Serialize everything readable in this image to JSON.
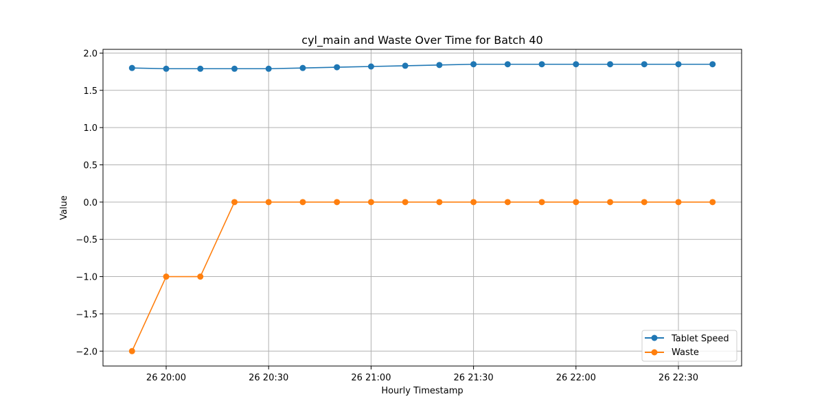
{
  "chart_data": {
    "type": "line",
    "title": "cyl_main and Waste Over Time for Batch 40",
    "xlabel": "Hourly Timestamp",
    "ylabel": "Value",
    "x": [
      "19:50",
      "20:00",
      "20:10",
      "20:20",
      "20:30",
      "20:40",
      "20:50",
      "21:00",
      "21:10",
      "21:20",
      "21:30",
      "21:40",
      "21:50",
      "22:00",
      "22:10",
      "22:20",
      "22:30",
      "22:40"
    ],
    "x_ticks": [
      "26 20:00",
      "26 20:30",
      "26 21:00",
      "26 21:30",
      "26 22:00",
      "26 22:30"
    ],
    "y_ticks": [
      "−2.0",
      "−1.5",
      "−1.0",
      "−0.5",
      "0.0",
      "0.5",
      "1.0",
      "1.5",
      "2.0"
    ],
    "ylim": [
      -2.2,
      2.05
    ],
    "grid": true,
    "legend_position": "lower-right",
    "series": [
      {
        "name": "Tablet Speed",
        "color": "#1f77b4",
        "values": [
          1.8,
          1.79,
          1.79,
          1.79,
          1.79,
          1.8,
          1.81,
          1.82,
          1.83,
          1.84,
          1.85,
          1.85,
          1.85,
          1.85,
          1.85,
          1.85,
          1.85,
          1.85
        ]
      },
      {
        "name": "Waste",
        "color": "#ff7f0e",
        "values": [
          -2,
          -1,
          -1,
          0,
          0,
          0,
          0,
          0,
          0,
          0,
          0,
          0,
          0,
          0,
          0,
          0,
          0,
          0
        ]
      }
    ]
  }
}
